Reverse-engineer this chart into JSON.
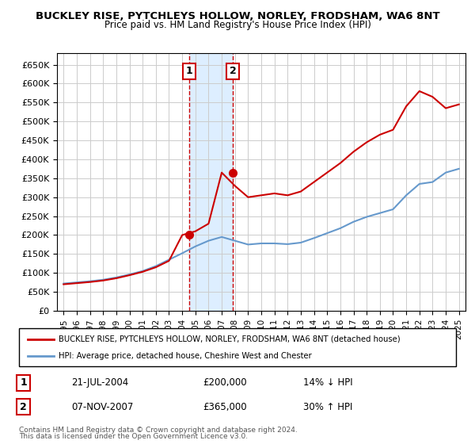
{
  "title": "BUCKLEY RISE, PYTCHLEYS HOLLOW, NORLEY, FRODSHAM, WA6 8NT",
  "subtitle": "Price paid vs. HM Land Registry's House Price Index (HPI)",
  "ylabel_ticks": [
    "£0",
    "£50K",
    "£100K",
    "£150K",
    "£200K",
    "£250K",
    "£300K",
    "£350K",
    "£400K",
    "£450K",
    "£500K",
    "£550K",
    "£600K",
    "£650K"
  ],
  "ytick_values": [
    0,
    50000,
    100000,
    150000,
    200000,
    250000,
    300000,
    350000,
    400000,
    450000,
    500000,
    550000,
    600000,
    650000
  ],
  "ylim": [
    0,
    680000
  ],
  "xlim_start": 1994.5,
  "xlim_end": 2025.5,
  "transaction1": {
    "date": "21-JUL-2004",
    "price": 200000,
    "hpi_pct": "14% ↓ HPI",
    "label": "1",
    "year": 2004.55
  },
  "transaction2": {
    "date": "07-NOV-2007",
    "price": 365000,
    "hpi_pct": "30% ↑ HPI",
    "label": "2",
    "year": 2007.85
  },
  "legend_line1": "BUCKLEY RISE, PYTCHLEYS HOLLOW, NORLEY, FRODSHAM, WA6 8NT (detached house)",
  "legend_line2": "HPI: Average price, detached house, Cheshire West and Chester",
  "footnote1": "Contains HM Land Registry data © Crown copyright and database right 2024.",
  "footnote2": "This data is licensed under the Open Government Licence v3.0.",
  "red_color": "#cc0000",
  "blue_color": "#6699cc",
  "shade_color": "#ddeeff",
  "grid_color": "#cccccc",
  "hpi_years": [
    1995,
    1996,
    1997,
    1998,
    1999,
    2000,
    2001,
    2002,
    2003,
    2004,
    2005,
    2006,
    2007,
    2008,
    2009,
    2010,
    2011,
    2012,
    2013,
    2014,
    2015,
    2016,
    2017,
    2018,
    2019,
    2020,
    2021,
    2022,
    2023,
    2024,
    2025
  ],
  "hpi_values": [
    72000,
    75000,
    78000,
    82000,
    88000,
    96000,
    105000,
    118000,
    135000,
    152000,
    170000,
    185000,
    195000,
    185000,
    175000,
    178000,
    178000,
    176000,
    180000,
    192000,
    205000,
    218000,
    235000,
    248000,
    258000,
    268000,
    305000,
    335000,
    340000,
    365000,
    375000
  ],
  "prop_years": [
    1995,
    1996,
    1997,
    1998,
    1999,
    2000,
    2001,
    2002,
    2003,
    2004,
    2005,
    2006,
    2007,
    2008,
    2009,
    2010,
    2011,
    2012,
    2013,
    2014,
    2015,
    2016,
    2017,
    2018,
    2019,
    2020,
    2021,
    2022,
    2023,
    2024,
    2025
  ],
  "prop_values": [
    70000,
    73000,
    76000,
    80000,
    86000,
    94000,
    103000,
    115000,
    132000,
    200000,
    210000,
    230000,
    365000,
    330000,
    300000,
    305000,
    310000,
    305000,
    315000,
    340000,
    365000,
    390000,
    420000,
    445000,
    465000,
    478000,
    540000,
    580000,
    565000,
    535000,
    545000
  ]
}
